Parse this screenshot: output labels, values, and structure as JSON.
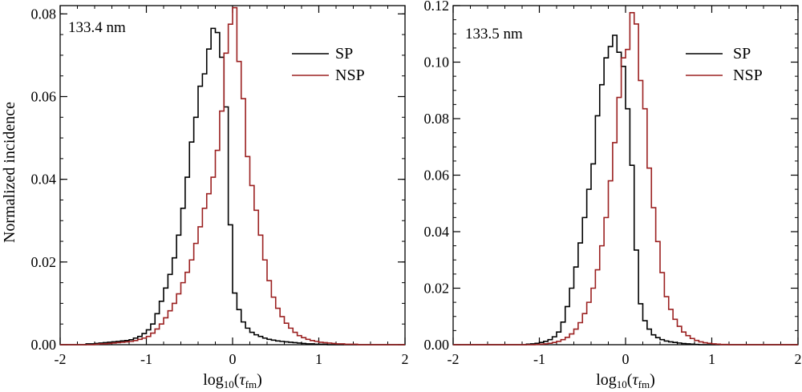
{
  "colors": {
    "SP": "#000000",
    "NSP": "#9b2020"
  },
  "shared_ylabel": "Normalized incidence",
  "chart_data": [
    {
      "type": "line",
      "step": true,
      "panel_label": "133.4 nm",
      "xlabel": {
        "main": "log",
        "sub": "10",
        "paren_open": "(",
        "tau": "τ",
        "tau_sub": "fm",
        "paren_close": ")"
      },
      "xlim": [
        -2,
        2
      ],
      "ylim": [
        0,
        0.082
      ],
      "xticks": [
        -2,
        -1,
        0,
        1,
        2
      ],
      "xtick_labels": [
        "-2",
        "-1",
        "0",
        "1",
        "2"
      ],
      "yticks": [
        0,
        0.02,
        0.04,
        0.06,
        0.08
      ],
      "ytick_labels": [
        "0.00",
        "0.02",
        "0.04",
        "0.06",
        "0.08"
      ],
      "legend": [
        "SP",
        "NSP"
      ],
      "legend_location": "top-right",
      "bin_width": 0.05,
      "series": [
        {
          "name": "SP",
          "x_start": -2.0,
          "values": [
            0,
            0,
            0,
            0,
            0,
            0,
            0.0002,
            0.0002,
            0.0003,
            0.0004,
            0.0005,
            0.0006,
            0.0007,
            0.0008,
            0.0009,
            0.001,
            0.0012,
            0.0016,
            0.002,
            0.0027,
            0.0036,
            0.005,
            0.0075,
            0.0105,
            0.0137,
            0.017,
            0.021,
            0.0265,
            0.033,
            0.0405,
            0.049,
            0.055,
            0.0625,
            0.0655,
            0.0715,
            0.0765,
            0.0755,
            0.0695,
            0.0575,
            0.029,
            0.0125,
            0.0085,
            0.0055,
            0.004,
            0.003,
            0.0024,
            0.002,
            0.0016,
            0.0013,
            0.0011,
            0.0009,
            0.0008,
            0.0007,
            0.0006,
            0.0005,
            0.0004,
            0.0003,
            0.0002,
            0.0002,
            0.0001,
            0.0001,
            0.0001,
            0,
            0,
            0,
            0,
            0,
            0,
            0,
            0,
            0,
            0,
            0,
            0,
            0,
            0,
            0,
            0,
            0,
            0
          ]
        },
        {
          "name": "NSP",
          "x_start": -2.0,
          "values": [
            0,
            0,
            0,
            0,
            0,
            0,
            0,
            0,
            0.0001,
            0.0002,
            0.0002,
            0.0003,
            0.0004,
            0.0005,
            0.0006,
            0.0007,
            0.0008,
            0.001,
            0.0013,
            0.0016,
            0.002,
            0.0028,
            0.0038,
            0.005,
            0.0065,
            0.0082,
            0.01,
            0.0123,
            0.015,
            0.0175,
            0.0205,
            0.0245,
            0.0285,
            0.033,
            0.0365,
            0.0405,
            0.047,
            0.0565,
            0.0705,
            0.0775,
            0.0815,
            0.0685,
            0.0595,
            0.0455,
            0.0385,
            0.0325,
            0.0265,
            0.0205,
            0.0155,
            0.0115,
            0.0088,
            0.0068,
            0.0052,
            0.004,
            0.003,
            0.0022,
            0.0017,
            0.0013,
            0.001,
            0.0008,
            0.0006,
            0.0005,
            0.0004,
            0.0003,
            0.0002,
            0.0002,
            0.0001,
            0.0001,
            0.0001,
            0,
            0,
            0,
            0,
            0,
            0,
            0,
            0,
            0,
            0,
            0
          ]
        }
      ]
    },
    {
      "type": "line",
      "step": true,
      "panel_label": "133.5 nm",
      "xlabel": {
        "main": "log",
        "sub": "10",
        "paren_open": "(",
        "tau": "τ",
        "tau_sub": "fm",
        "paren_close": ")"
      },
      "xlim": [
        -2,
        2
      ],
      "ylim": [
        0,
        0.12
      ],
      "xticks": [
        -2,
        -1,
        0,
        1,
        2
      ],
      "xtick_labels": [
        "-2",
        "-1",
        "0",
        "1",
        "2"
      ],
      "yticks": [
        0,
        0.02,
        0.04,
        0.06,
        0.08,
        0.1,
        0.12
      ],
      "ytick_labels": [
        "0.00",
        "0.02",
        "0.04",
        "0.06",
        "0.08",
        "0.10",
        "0.12"
      ],
      "legend": [
        "SP",
        "NSP"
      ],
      "legend_location": "top-right",
      "bin_width": 0.05,
      "series": [
        {
          "name": "SP",
          "x_start": -2.0,
          "values": [
            0,
            0,
            0,
            0,
            0,
            0,
            0,
            0,
            0,
            0,
            0,
            0,
            0,
            0,
            0,
            0,
            0,
            0.0002,
            0.0003,
            0.0005,
            0.0008,
            0.0012,
            0.0018,
            0.0028,
            0.0045,
            0.008,
            0.0135,
            0.02,
            0.0275,
            0.036,
            0.045,
            0.055,
            0.064,
            0.081,
            0.092,
            0.1015,
            0.1055,
            0.1095,
            0.1035,
            0.0985,
            0.0835,
            0.0635,
            0.0335,
            0.0145,
            0.0085,
            0.0055,
            0.0035,
            0.0025,
            0.0018,
            0.0013,
            0.001,
            0.0008,
            0.0006,
            0.0004,
            0.0003,
            0.0002,
            0.0001,
            0,
            0,
            0,
            0,
            0,
            0,
            0,
            0,
            0,
            0,
            0,
            0,
            0,
            0,
            0,
            0,
            0,
            0,
            0,
            0,
            0,
            0,
            0
          ]
        },
        {
          "name": "NSP",
          "x_start": -2.0,
          "values": [
            0,
            0,
            0,
            0,
            0,
            0,
            0,
            0,
            0,
            0,
            0,
            0,
            0,
            0,
            0,
            0,
            0,
            0,
            0,
            0.0001,
            0.0002,
            0.0003,
            0.0005,
            0.0008,
            0.0012,
            0.0018,
            0.0026,
            0.0038,
            0.0055,
            0.0078,
            0.011,
            0.015,
            0.02,
            0.0265,
            0.035,
            0.045,
            0.058,
            0.0715,
            0.0875,
            0.1015,
            0.1045,
            0.1175,
            0.1135,
            0.0935,
            0.0835,
            0.0625,
            0.0485,
            0.0365,
            0.0255,
            0.017,
            0.0125,
            0.009,
            0.0065,
            0.0045,
            0.0032,
            0.0022,
            0.0015,
            0.001,
            0.0007,
            0.0005,
            0.0003,
            0.0002,
            0.0001,
            0.0001,
            0,
            0,
            0,
            0,
            0,
            0,
            0,
            0,
            0,
            0,
            0,
            0,
            0,
            0,
            0,
            0
          ]
        }
      ]
    }
  ]
}
